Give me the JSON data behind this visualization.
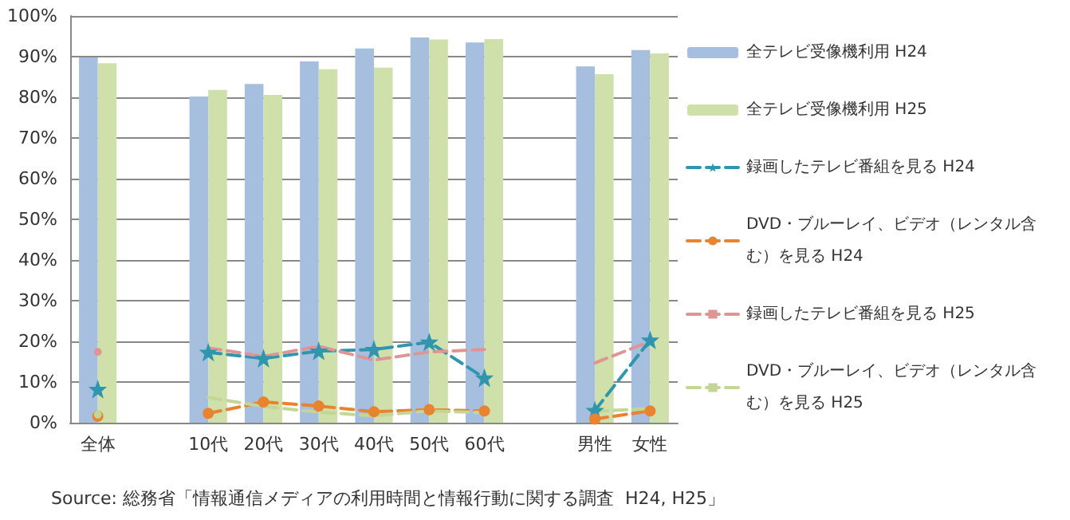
{
  "chart_data": {
    "type": "bar",
    "categories": [
      "全体",
      null,
      "10代",
      "20代",
      "30代",
      "40代",
      "50代",
      "60代",
      null,
      "男性",
      "女性"
    ],
    "series": [
      {
        "name": "全テレビ受像機利用 H24",
        "color": "#a7bfdf",
        "values": [
          89.8,
          null,
          80.2,
          83.3,
          88.8,
          92.0,
          94.7,
          93.5,
          null,
          87.6,
          91.6
        ]
      },
      {
        "name": "全テレビ受像機利用 H25",
        "color": "#d0e0aa",
        "values": [
          88.4,
          null,
          81.8,
          80.6,
          86.9,
          87.3,
          94.2,
          94.3,
          null,
          85.7,
          90.8
        ]
      },
      {
        "name": "録画したテレビ番組を見る H24",
        "type": "line",
        "color": "#2f96ad",
        "marker": "star",
        "values": [
          8.2,
          null,
          17.3,
          15.8,
          17.6,
          18.0,
          19.8,
          11.0,
          null,
          3.0,
          20.3
        ]
      },
      {
        "name": "DVD・ブルーレイ、ビデオ（レンタル含む）を見る H24",
        "type": "line",
        "color": "#e8832f",
        "marker": "circle",
        "values": [
          1.6,
          null,
          2.3,
          5.1,
          4.1,
          2.7,
          3.2,
          2.9,
          null,
          0.9,
          2.9
        ]
      },
      {
        "name": "録画したテレビ番組を見る H25",
        "type": "line",
        "color": "#e09595",
        "marker": "none",
        "values": [
          17.4,
          null,
          18.4,
          16.3,
          18.8,
          15.4,
          17.4,
          18.0,
          null,
          14.7,
          20.0
        ]
      },
      {
        "name": "DVD・ブルーレイ、ビデオ（レンタル含む）を見る H25",
        "type": "line",
        "color": "#c3d696",
        "marker": "none",
        "values": [
          2.0,
          null,
          6.2,
          4.0,
          2.6,
          1.7,
          2.9,
          2.5,
          null,
          2.8,
          3.5
        ]
      }
    ],
    "ylim": [
      0,
      100
    ],
    "yticks": [
      {
        "value": 0,
        "label": "0%"
      },
      {
        "value": 10,
        "label": "10%"
      },
      {
        "value": 20,
        "label": "20%"
      },
      {
        "value": 30,
        "label": "30%"
      },
      {
        "value": 40,
        "label": "40%"
      },
      {
        "value": 50,
        "label": "50%"
      },
      {
        "value": 60,
        "label": "60%"
      },
      {
        "value": 70,
        "label": "70%"
      },
      {
        "value": 80,
        "label": "80%"
      },
      {
        "value": 90,
        "label": "90%"
      },
      {
        "value": 100,
        "label": "100%"
      }
    ],
    "grid": "y",
    "legend": "right",
    "line_style": "dashed",
    "annotations": [
      "Source: 総務省「情報通信メディアの利用時間と情報行動に関する調査  H24, H25」"
    ]
  }
}
